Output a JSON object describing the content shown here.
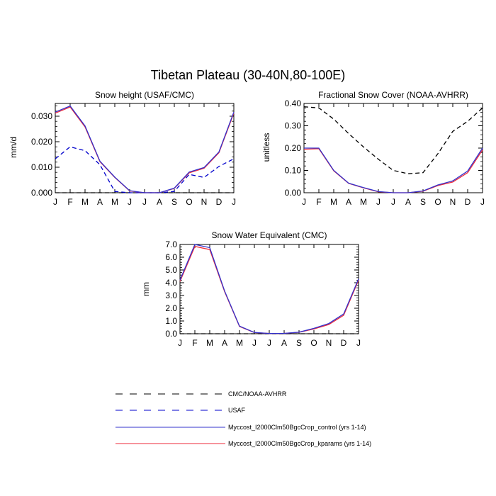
{
  "figure": {
    "title": "Tibetan Plateau (30-40N,80-100E)"
  },
  "colors": {
    "obs_cmc": "#000000",
    "obs_usaf": "#0000cc",
    "control": "#3333cc",
    "kparams": "#ee2a3a"
  },
  "legend": {
    "entries": [
      {
        "label": "CMC/NOAA-AVHRR",
        "color": "#000000",
        "dash": true
      },
      {
        "label": "USAF",
        "color": "#0000cc",
        "dash": true
      },
      {
        "label": "Myccost_I2000Clm50BgcCrop_control (yrs 1-14)",
        "color": "#3333cc",
        "dash": false
      },
      {
        "label": "Myccost_I2000Clm50BgcCrop_kparams (yrs 1-14)",
        "color": "#ee2a3a",
        "dash": false
      }
    ]
  },
  "chart_data": [
    {
      "type": "line",
      "title": "Snow height (USAF/CMC)",
      "ylabel": "mm/d",
      "categories": [
        "J",
        "F",
        "M",
        "A",
        "M",
        "J",
        "J",
        "A",
        "S",
        "O",
        "N",
        "D",
        "J"
      ],
      "ylim": [
        0,
        0.035
      ],
      "yticks": [
        "0.000",
        "0.010",
        "0.020",
        "0.030"
      ],
      "ytick_values": [
        0,
        0.01,
        0.02,
        0.03
      ],
      "series": [
        {
          "name": "CMC/NOAA-AVHRR",
          "color": "#000000",
          "dash": true,
          "values": [
            0,
            0,
            0,
            0,
            0,
            0,
            0,
            0,
            0,
            0,
            0,
            0,
            0
          ]
        },
        {
          "name": "USAF",
          "color": "#0000cc",
          "dash": true,
          "values": [
            0.0133,
            0.018,
            0.0165,
            0.011,
            0.0005,
            0,
            0,
            0,
            0.0005,
            0.0072,
            0.006,
            0.0103,
            0.0133
          ]
        },
        {
          "name": "Myccost_I2000Clm50BgcCrop_kparams (yrs 1-14)",
          "color": "#ee2a3a",
          "dash": false,
          "values": [
            0.0312,
            0.0336,
            0.0258,
            0.0122,
            0.006,
            0.0007,
            0,
            0,
            0.0017,
            0.0078,
            0.0096,
            0.0157,
            0.0312
          ]
        },
        {
          "name": "Myccost_I2000Clm50BgcCrop_control (yrs 1-14)",
          "color": "#3333cc",
          "dash": false,
          "values": [
            0.0316,
            0.034,
            0.0262,
            0.0124,
            0.0061,
            0.0008,
            0,
            0,
            0.0018,
            0.0081,
            0.0099,
            0.016,
            0.0316
          ]
        }
      ]
    },
    {
      "type": "line",
      "title": "Fractional Snow Cover (NOAA-AVHRR)",
      "ylabel": "unitless",
      "categories": [
        "J",
        "F",
        "M",
        "A",
        "M",
        "J",
        "J",
        "A",
        "S",
        "O",
        "N",
        "D",
        "J"
      ],
      "ylim": [
        0,
        0.4
      ],
      "yticks": [
        "0.00",
        "0.10",
        "0.20",
        "0.30",
        "0.40"
      ],
      "ytick_values": [
        0,
        0.1,
        0.2,
        0.3,
        0.4
      ],
      "series": [
        {
          "name": "CMC/NOAA-AVHRR",
          "color": "#000000",
          "dash": true,
          "values": [
            0.385,
            0.38,
            0.33,
            0.265,
            0.205,
            0.15,
            0.1,
            0.085,
            0.09,
            0.175,
            0.275,
            0.32,
            0.38
          ]
        },
        {
          "name": "Myccost_I2000Clm50BgcCrop_kparams (yrs 1-14)",
          "color": "#ee2a3a",
          "dash": false,
          "values": [
            0.195,
            0.197,
            0.098,
            0.042,
            0.022,
            0.004,
            0,
            0,
            0.007,
            0.032,
            0.048,
            0.09,
            0.192
          ]
        },
        {
          "name": "Myccost_I2000Clm50BgcCrop_control (yrs 1-14)",
          "color": "#3333cc",
          "dash": false,
          "values": [
            0.2,
            0.2,
            0.1,
            0.043,
            0.023,
            0.005,
            0,
            0,
            0.008,
            0.035,
            0.053,
            0.097,
            0.2
          ]
        }
      ]
    },
    {
      "type": "line",
      "title": "Snow Water Equivalent (CMC)",
      "ylabel": "mm",
      "categories": [
        "J",
        "F",
        "M",
        "A",
        "M",
        "J",
        "J",
        "A",
        "S",
        "O",
        "N",
        "D",
        "J"
      ],
      "ylim": [
        0,
        7.0
      ],
      "yticks": [
        "0.0",
        "1.0",
        "2.0",
        "3.0",
        "4.0",
        "5.0",
        "6.0",
        "7.0"
      ],
      "ytick_values": [
        0,
        1,
        2,
        3,
        4,
        5,
        6,
        7
      ],
      "series": [
        {
          "name": "CMC/NOAA-AVHRR",
          "color": "#000000",
          "dash": true,
          "values": [
            0,
            0,
            0,
            0,
            0,
            0,
            0,
            0,
            0,
            0,
            0,
            0,
            0
          ]
        },
        {
          "name": "Myccost_I2000Clm50BgcCrop_kparams (yrs 1-14)",
          "color": "#ee2a3a",
          "dash": false,
          "values": [
            4.1,
            6.85,
            6.6,
            3.3,
            0.57,
            0.09,
            0.02,
            0.03,
            0.11,
            0.38,
            0.72,
            1.45,
            4.2
          ]
        },
        {
          "name": "Myccost_I2000Clm50BgcCrop_control (yrs 1-14)",
          "color": "#3333cc",
          "dash": false,
          "values": [
            4.2,
            7.0,
            6.75,
            3.35,
            0.6,
            0.1,
            0.02,
            0.03,
            0.12,
            0.42,
            0.8,
            1.55,
            4.3
          ]
        }
      ]
    }
  ]
}
